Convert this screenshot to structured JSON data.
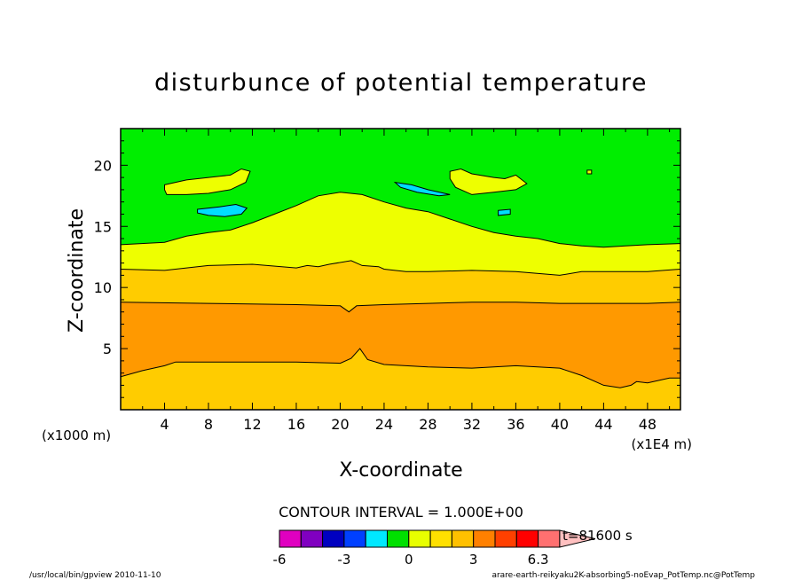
{
  "chart_data": {
    "type": "heatmap",
    "title": "disturbunce of potential temperature",
    "xlabel": "X-coordinate",
    "ylabel": "Z-coordinate",
    "x_unit_left": "(x1000 m)",
    "x_unit_right": "(x1E4 m)",
    "xlim": [
      0,
      51
    ],
    "ylim": [
      0,
      23
    ],
    "x_ticks": [
      "4",
      "8",
      "12",
      "16",
      "20",
      "24",
      "28",
      "32",
      "36",
      "40",
      "44",
      "48"
    ],
    "y_ticks": [
      "5",
      "10",
      "15",
      "20"
    ],
    "contour_interval_text": "CONTOUR INTERVAL = 1.000E+00",
    "time_text": "t=81600 s",
    "colorbar": {
      "tick_labels": [
        "-6",
        "-3",
        "0",
        "3",
        "6.3"
      ],
      "colors": [
        "#e000c0",
        "#8000c0",
        "#0000c0",
        "#0040ff",
        "#00e8ff",
        "#00e000",
        "#e8ff00",
        "#ffe000",
        "#ffc000",
        "#ff8000",
        "#ff4000",
        "#ff0000",
        "#ff7070",
        "#ffc0c0"
      ]
    },
    "bands": [
      {
        "level": 1,
        "color": "#ffcc00",
        "z_bottom": 0,
        "z_top": 3.5
      },
      {
        "level": 2,
        "color": "#ff9900",
        "z_bottom": 3.5,
        "z_top": 8.8
      },
      {
        "level": 1,
        "color": "#ffcc00",
        "z_bottom": 8.8,
        "z_top": 11.5
      },
      {
        "level": 0,
        "color": "#eeff00",
        "z_bottom": 11.5,
        "z_top": 13.5
      },
      {
        "level": -1,
        "color": "#00ee00",
        "z_bottom": 13.5,
        "z_top": 23
      }
    ],
    "boundaries": {
      "b1": [
        [
          0,
          2.7
        ],
        [
          2,
          3.2
        ],
        [
          4,
          3.6
        ],
        [
          5,
          3.9
        ],
        [
          8,
          3.9
        ],
        [
          12,
          3.9
        ],
        [
          16,
          3.9
        ],
        [
          20,
          3.8
        ],
        [
          21,
          4.2
        ],
        [
          21.8,
          5.0
        ],
        [
          22.5,
          4.1
        ],
        [
          24,
          3.7
        ],
        [
          28,
          3.5
        ],
        [
          32,
          3.4
        ],
        [
          36,
          3.6
        ],
        [
          40,
          3.4
        ],
        [
          42,
          2.8
        ],
        [
          44,
          2.0
        ],
        [
          45.5,
          1.8
        ],
        [
          46.5,
          2.0
        ],
        [
          47,
          2.3
        ],
        [
          48,
          2.2
        ],
        [
          50,
          2.6
        ],
        [
          51,
          2.6
        ]
      ],
      "b2": [
        [
          0,
          8.8
        ],
        [
          8,
          8.7
        ],
        [
          16,
          8.6
        ],
        [
          20,
          8.5
        ],
        [
          20.8,
          8.0
        ],
        [
          21.5,
          8.5
        ],
        [
          24,
          8.6
        ],
        [
          28,
          8.7
        ],
        [
          32,
          8.8
        ],
        [
          36,
          8.8
        ],
        [
          40,
          8.7
        ],
        [
          44,
          8.7
        ],
        [
          48,
          8.7
        ],
        [
          51,
          8.8
        ]
      ],
      "b3": [
        [
          0,
          11.5
        ],
        [
          4,
          11.4
        ],
        [
          8,
          11.8
        ],
        [
          12,
          11.9
        ],
        [
          16,
          11.6
        ],
        [
          17,
          11.8
        ],
        [
          18,
          11.7
        ],
        [
          19,
          11.9
        ],
        [
          21,
          12.2
        ],
        [
          22,
          11.8
        ],
        [
          23.5,
          11.7
        ],
        [
          24,
          11.5
        ],
        [
          26,
          11.3
        ],
        [
          28,
          11.3
        ],
        [
          32,
          11.4
        ],
        [
          36,
          11.3
        ],
        [
          40,
          11.0
        ],
        [
          42,
          11.3
        ],
        [
          44,
          11.3
        ],
        [
          48,
          11.3
        ],
        [
          51,
          11.5
        ]
      ],
      "b4": [
        [
          0,
          13.5
        ],
        [
          4,
          13.7
        ],
        [
          6,
          14.2
        ],
        [
          8,
          14.5
        ],
        [
          10,
          14.7
        ],
        [
          12,
          15.3
        ],
        [
          14,
          16.0
        ],
        [
          16,
          16.7
        ],
        [
          18,
          17.5
        ],
        [
          20,
          17.8
        ],
        [
          22,
          17.6
        ],
        [
          24,
          17.0
        ],
        [
          26,
          16.5
        ],
        [
          28,
          16.2
        ],
        [
          30,
          15.6
        ],
        [
          32,
          15.0
        ],
        [
          34,
          14.5
        ],
        [
          36,
          14.2
        ],
        [
          38,
          14.0
        ],
        [
          40,
          13.6
        ],
        [
          42,
          13.4
        ],
        [
          44,
          13.3
        ],
        [
          46,
          13.4
        ],
        [
          48,
          13.5
        ],
        [
          51,
          13.6
        ]
      ]
    },
    "islands": [
      {
        "color": "#eeff00",
        "points": [
          [
            4,
            18.4
          ],
          [
            6,
            18.8
          ],
          [
            8,
            19.0
          ],
          [
            9,
            19.1
          ],
          [
            10,
            19.2
          ],
          [
            11,
            19.7
          ],
          [
            11.8,
            19.5
          ],
          [
            11.4,
            18.6
          ],
          [
            10,
            18.0
          ],
          [
            8,
            17.7
          ],
          [
            6,
            17.6
          ],
          [
            4.2,
            17.6
          ],
          [
            4,
            18.0
          ]
        ]
      },
      {
        "color": "#eeff00",
        "points": [
          [
            30,
            19.5
          ],
          [
            31,
            19.7
          ],
          [
            32,
            19.3
          ],
          [
            34,
            19.0
          ],
          [
            35,
            18.9
          ],
          [
            36,
            19.2
          ],
          [
            37,
            18.5
          ],
          [
            36,
            18.0
          ],
          [
            34,
            17.8
          ],
          [
            32,
            17.6
          ],
          [
            30.5,
            18.2
          ],
          [
            30,
            18.9
          ]
        ]
      },
      {
        "color": "#00ddff",
        "points": [
          [
            7,
            16.4
          ],
          [
            9,
            16.6
          ],
          [
            10.5,
            16.8
          ],
          [
            11.5,
            16.5
          ],
          [
            11,
            16.0
          ],
          [
            9.5,
            15.8
          ],
          [
            8,
            15.9
          ],
          [
            7,
            16.1
          ]
        ]
      },
      {
        "color": "#00ddff",
        "points": [
          [
            25,
            18.6
          ],
          [
            26.5,
            18.4
          ],
          [
            28,
            18.0
          ],
          [
            30,
            17.6
          ],
          [
            29,
            17.5
          ],
          [
            27,
            17.8
          ],
          [
            25.5,
            18.2
          ]
        ]
      },
      {
        "color": "#00ddff",
        "points": [
          [
            34.4,
            16.3
          ],
          [
            35.5,
            16.4
          ],
          [
            35.5,
            16.0
          ],
          [
            34.4,
            15.9
          ]
        ]
      },
      {
        "color": "#eeff00",
        "points": [
          [
            42.5,
            19.6
          ],
          [
            42.9,
            19.6
          ],
          [
            42.9,
            19.3
          ],
          [
            42.5,
            19.3
          ]
        ]
      }
    ],
    "grid": false
  },
  "footer": {
    "left": "/usr/local/bin/gpview  2010-11-10",
    "right": "arare-earth-reikyaku2K-absorbing5-noEvap_PotTemp.nc@PotTemp"
  }
}
